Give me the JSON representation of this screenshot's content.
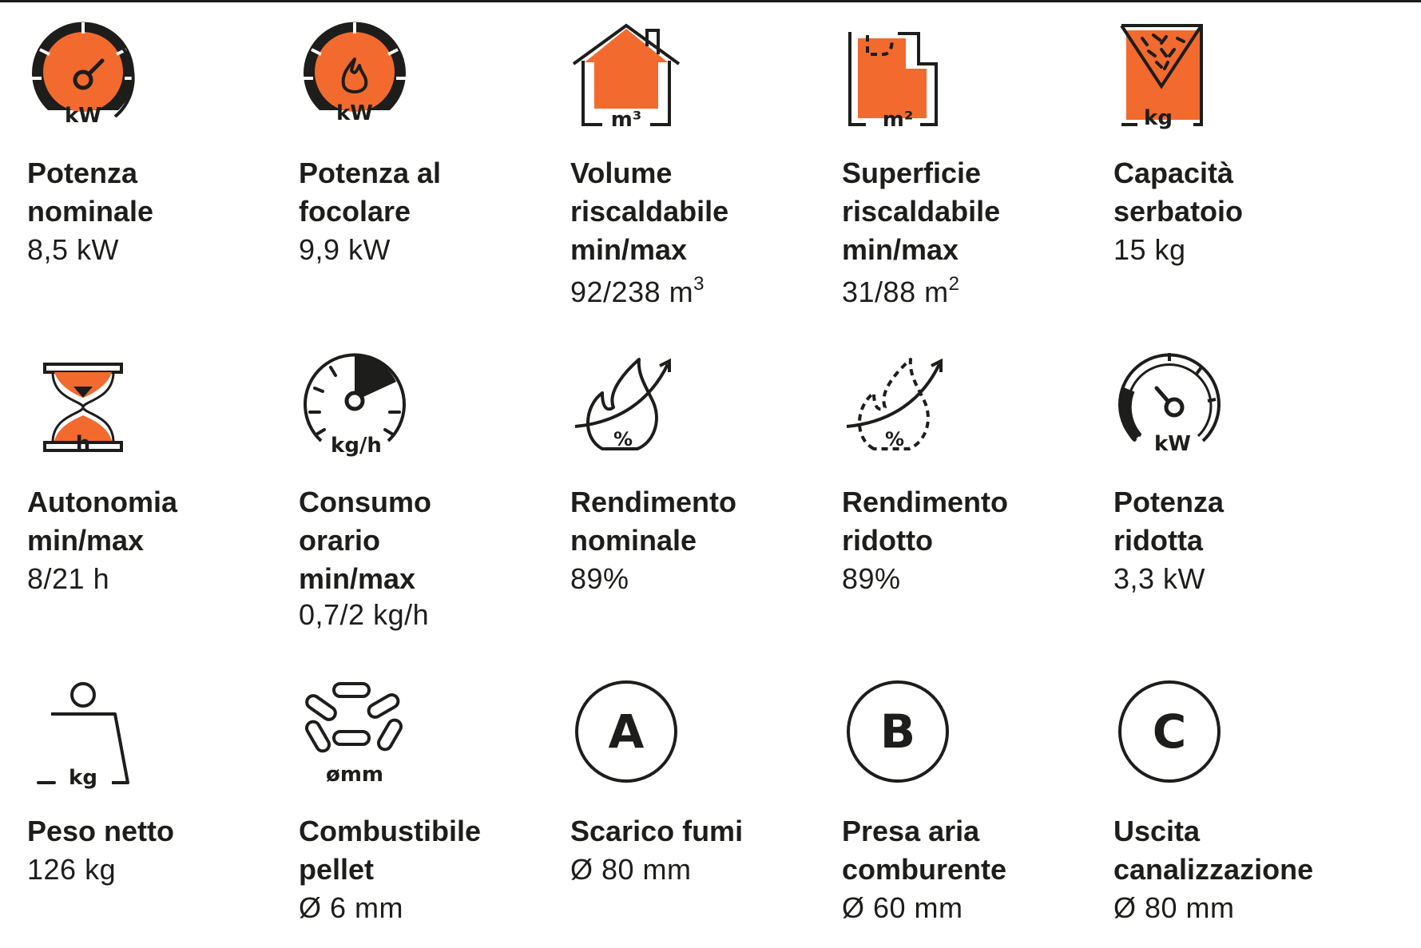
{
  "colors": {
    "accent": "#f26a2e",
    "ink": "#1d1d1b"
  },
  "specs": [
    {
      "icon": "power-gauge-kw-icon",
      "icon_text": "kW",
      "label": "Potenza\nnominale",
      "value": "8,5 kW"
    },
    {
      "icon": "flame-gauge-kw-icon",
      "icon_text": "kW",
      "label": "Potenza al\nfocolare",
      "value": "9,9 kW"
    },
    {
      "icon": "house-volume-icon",
      "icon_text": "m³",
      "label": "Volume\nriscaldabile\nmin/max",
      "value": "92/238 m",
      "value_sup": "3"
    },
    {
      "icon": "floor-plan-area-icon",
      "icon_text": "m²",
      "label": "Superficie\nriscaldabile\nmin/max",
      "value": "31/88 m",
      "value_sup": "2"
    },
    {
      "icon": "hopper-capacity-icon",
      "icon_text": "kg",
      "label": "Capacità\nserbatoio",
      "value": "15 kg"
    },
    {
      "icon": "hourglass-icon",
      "icon_text": "h",
      "label": "Autonomia\nmin/max",
      "value": "8/21 h"
    },
    {
      "icon": "consumption-gauge-icon",
      "icon_text": "kg/h",
      "label": "Consumo\norario\nmin/max",
      "value": "0,7/2 kg/h"
    },
    {
      "icon": "flame-efficiency-icon",
      "icon_text": "%",
      "label": "Rendimento\nnominale",
      "value": "89%"
    },
    {
      "icon": "reduced-flame-efficiency-icon",
      "icon_text": "%",
      "label": "Rendimento\nridotto",
      "value": "89%"
    },
    {
      "icon": "reduced-power-gauge-icon",
      "icon_text": "kW",
      "label": "Potenza\nridotta",
      "value": "3,3 kW"
    },
    {
      "icon": "weight-icon",
      "icon_text": "kg",
      "label": "Peso netto",
      "value": "126 kg"
    },
    {
      "icon": "pellets-icon",
      "icon_text": "ømm",
      "label": "Combustibile\npellet",
      "value": "Ø 6 mm"
    },
    {
      "icon": "circle-a-icon",
      "icon_text": "A",
      "label": "Scarico fumi",
      "value": "Ø 80 mm"
    },
    {
      "icon": "circle-b-icon",
      "icon_text": "B",
      "label": "Presa aria\ncomburente",
      "value": "Ø 60 mm"
    },
    {
      "icon": "circle-c-icon",
      "icon_text": "C",
      "label": "Uscita\ncanalizzazione",
      "value": "Ø 80 mm"
    }
  ]
}
